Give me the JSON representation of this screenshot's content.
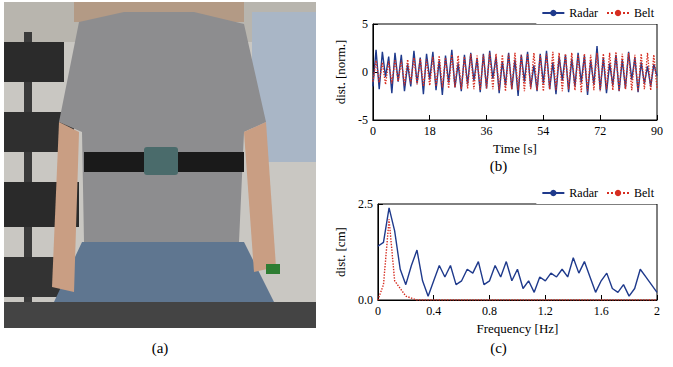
{
  "photo": {
    "caption": "(a)"
  },
  "chart_data": [
    {
      "type": "line",
      "caption": "(b)",
      "x_label": "Time [s]",
      "y_label": "dist. [norm.]",
      "x": [
        0,
        1,
        2,
        3,
        4,
        5,
        6,
        7,
        8,
        9,
        10,
        11,
        12,
        13,
        14,
        15,
        16,
        17,
        18,
        19,
        20,
        21,
        22,
        23,
        24,
        25,
        26,
        27,
        28,
        29,
        30,
        31,
        32,
        33,
        34,
        35,
        36,
        37,
        38,
        39,
        40,
        41,
        42,
        43,
        44,
        45,
        46,
        47,
        48,
        49,
        50,
        51,
        52,
        53,
        54,
        55,
        56,
        57,
        58,
        59,
        60,
        61,
        62,
        63,
        64,
        65,
        66,
        67,
        68,
        69,
        70,
        71,
        72,
        73,
        74,
        75,
        76,
        77,
        78,
        79,
        80,
        81,
        82,
        83,
        84,
        85,
        86,
        87,
        88,
        89,
        90
      ],
      "xlim": [
        0,
        90
      ],
      "xticks": [
        0,
        18,
        36,
        54,
        72,
        90
      ],
      "ylim": [
        -5,
        5
      ],
      "yticks": [
        -5,
        0,
        5
      ],
      "grid": false,
      "legend": "top-right",
      "series": [
        {
          "name": "Radar",
          "color": "#1f3a8c",
          "line_style": "solid",
          "values": [
            -1.5,
            2.3,
            -1.8,
            2.1,
            -0.5,
            1.6,
            -2.2,
            2.0,
            -1.0,
            1.8,
            -2.0,
            0.8,
            -1.5,
            2.2,
            -1.2,
            1.5,
            -2.3,
            1.9,
            -0.8,
            2.1,
            -1.9,
            1.2,
            -2.4,
            1.7,
            -1.1,
            2.3,
            -1.6,
            0.9,
            -2.0,
            1.8,
            -1.3,
            2.0,
            -0.9,
            1.4,
            -2.1,
            1.9,
            -1.7,
            2.2,
            -0.7,
            1.6,
            -2.2,
            1.1,
            -1.4,
            2.0,
            -1.8,
            1.3,
            -2.5,
            1.8,
            -1.0,
            2.1,
            -1.6,
            0.7,
            -2.0,
            1.9,
            -1.2,
            2.2,
            -1.8,
            1.0,
            -2.3,
            1.6,
            -0.9,
            1.8,
            -2.1,
            1.4,
            -1.5,
            2.0,
            -1.1,
            1.7,
            -2.4,
            1.2,
            -1.3,
            2.7,
            -1.9,
            1.5,
            -2.2,
            0.9,
            -1.4,
            1.8,
            -2.0,
            1.3,
            -1.7,
            2.1,
            -0.8,
            1.5,
            -2.1,
            1.0,
            -1.2,
            0.6,
            -1.5,
            0.8,
            -0.4
          ]
        },
        {
          "name": "Belt",
          "color": "#d62d20",
          "line_style": "dotted",
          "values": [
            -1.0,
            1.2,
            -1.1,
            1.0,
            -1.3,
            1.1,
            -1.2,
            1.3,
            -1.0,
            1.2,
            -1.4,
            1.3,
            -1.2,
            1.5,
            -1.3,
            1.4,
            -1.5,
            1.3,
            -1.4,
            1.6,
            -1.5,
            1.7,
            -1.6,
            1.5,
            -1.7,
            1.8,
            -1.6,
            1.7,
            -1.8,
            1.6,
            -1.7,
            1.9,
            -1.8,
            1.7,
            -1.9,
            1.8,
            -1.7,
            2.0,
            -1.8,
            1.9,
            -1.9,
            1.8,
            -2.0,
            1.9,
            -1.8,
            2.0,
            -1.9,
            1.8,
            -2.0,
            1.9,
            -1.8,
            2.0,
            -1.9,
            1.8,
            -2.0,
            1.9,
            -1.8,
            2.1,
            -1.9,
            2.0,
            -2.0,
            1.9,
            -1.8,
            2.0,
            -1.9,
            1.8,
            -2.1,
            1.9,
            -2.0,
            1.8,
            -1.9,
            2.0,
            -2.0,
            1.9,
            -1.8,
            2.0,
            -1.9,
            2.1,
            -2.0,
            1.9,
            -1.8,
            2.0,
            -1.9,
            1.8,
            -2.0,
            1.9,
            -1.8,
            2.0,
            -1.9,
            1.8,
            -1.7
          ]
        }
      ]
    },
    {
      "type": "line",
      "caption": "(c)",
      "x_label": "Frequency [Hz]",
      "y_label": "dist. [cm]",
      "x": [
        0,
        0.04,
        0.08,
        0.12,
        0.16,
        0.2,
        0.24,
        0.28,
        0.32,
        0.36,
        0.4,
        0.44,
        0.48,
        0.52,
        0.56,
        0.6,
        0.64,
        0.68,
        0.72,
        0.76,
        0.8,
        0.84,
        0.88,
        0.92,
        0.96,
        1.0,
        1.04,
        1.08,
        1.12,
        1.16,
        1.2,
        1.24,
        1.28,
        1.32,
        1.36,
        1.4,
        1.44,
        1.48,
        1.52,
        1.56,
        1.6,
        1.64,
        1.68,
        1.72,
        1.76,
        1.8,
        1.84,
        1.88,
        1.92,
        1.96,
        2.0
      ],
      "xlim": [
        0,
        2
      ],
      "xticks": [
        0,
        0.4,
        0.8,
        1.2,
        1.6,
        2
      ],
      "ylim": [
        0,
        2.5
      ],
      "yticks": [
        {
          "value": 0,
          "label": "0.0"
        },
        2.5
      ],
      "grid": false,
      "legend": "top-right",
      "series": [
        {
          "name": "Radar",
          "color": "#1f3a8c",
          "line_style": "solid",
          "values": [
            1.4,
            1.5,
            2.4,
            1.8,
            0.8,
            0.4,
            0.9,
            1.3,
            0.5,
            0.1,
            0.5,
            0.9,
            0.6,
            0.9,
            0.4,
            0.5,
            0.8,
            0.7,
            1.0,
            0.4,
            0.5,
            0.9,
            0.6,
            1.0,
            0.5,
            0.8,
            0.3,
            0.5,
            0.2,
            0.6,
            0.5,
            0.7,
            0.6,
            0.8,
            0.6,
            1.1,
            0.7,
            1.0,
            0.6,
            0.2,
            0.5,
            0.7,
            0.3,
            0.2,
            0.4,
            0.1,
            0.3,
            0.8,
            0.6,
            0.4,
            0.2
          ]
        },
        {
          "name": "Belt",
          "color": "#d62d20",
          "line_style": "dotted",
          "values": [
            0.0,
            0.4,
            2.1,
            0.5,
            0.3,
            0.1,
            0.05,
            0.0,
            0.0,
            0.0,
            0.0,
            0.0,
            0.0,
            0.0,
            0.0,
            0.0,
            0.0,
            0.0,
            0.0,
            0.0,
            0.0,
            0.0,
            0.0,
            0.0,
            0.0,
            0.0,
            0.0,
            0.0,
            0.0,
            0.0,
            0.0,
            0.0,
            0.0,
            0.0,
            0.0,
            0.0,
            0.0,
            0.0,
            0.0,
            0.0,
            0.0,
            0.0,
            0.0,
            0.0,
            0.0,
            0.0,
            0.0,
            0.0,
            0.0,
            0.0,
            0.0
          ]
        }
      ]
    }
  ]
}
